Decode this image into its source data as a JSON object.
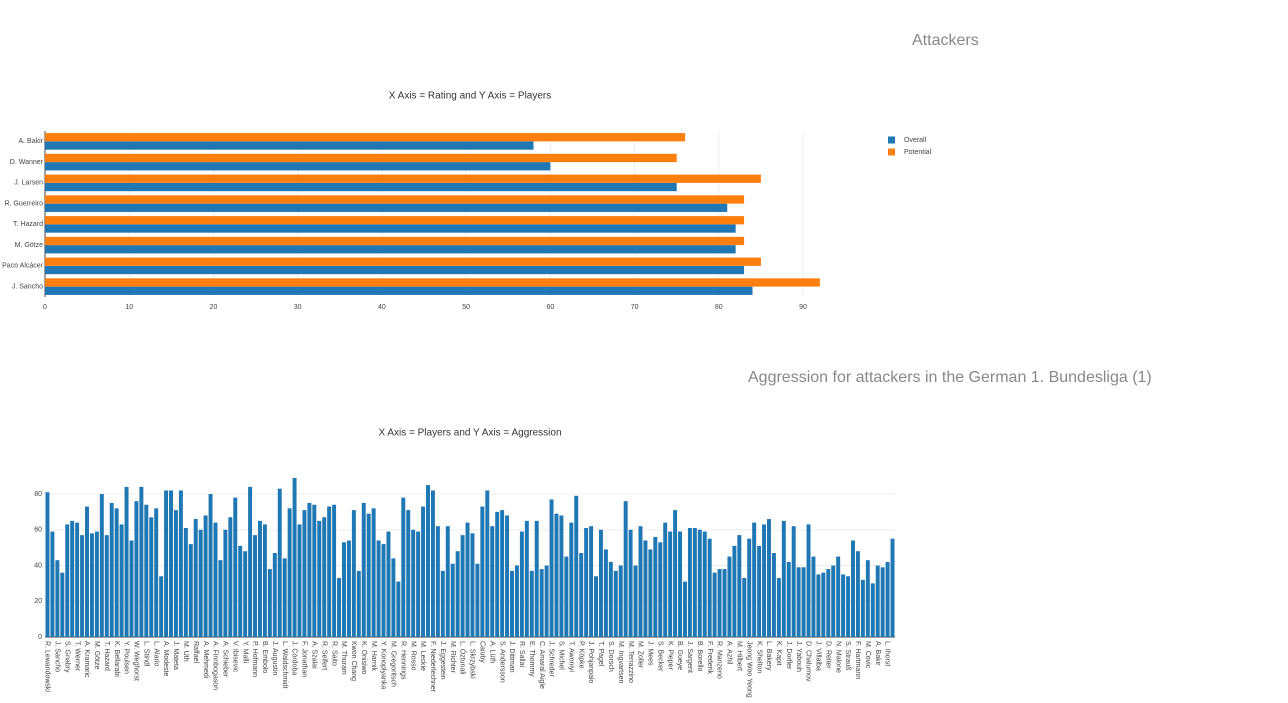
{
  "chart_data": [
    {
      "type": "bar",
      "orientation": "h",
      "heading": "Attackers",
      "title": "X Axis = Rating and Y Axis = Players",
      "categories": [
        "A. Bakir",
        "D. Wanner",
        "J. Larsen",
        "R. Guerreiro",
        "T. Hazard",
        "M. Götze",
        "Paco Alcácer",
        "J. Sancho"
      ],
      "series": [
        {
          "name": "Overall",
          "color": "#1f77b4",
          "values": [
            58,
            60,
            75,
            81,
            82,
            82,
            83,
            84
          ]
        },
        {
          "name": "Potential",
          "color": "#ff7f0e",
          "values": [
            76,
            75,
            85,
            83,
            83,
            83,
            85,
            92
          ]
        }
      ],
      "xlim": [
        0,
        97
      ],
      "xticks": [
        0,
        10,
        20,
        30,
        40,
        50,
        60,
        70,
        80,
        90
      ],
      "grid": true,
      "legend": "top-right"
    },
    {
      "type": "bar",
      "orientation": "v",
      "heading": "Aggression for attackers in the German 1. Bundesliga (1)",
      "title": "X Axis = Players and Y Axis = Aggression",
      "categories": [
        "R. Lewandowski",
        null,
        "J. Sancho",
        null,
        "S. Gnabry",
        null,
        "T. Werner",
        null,
        "A. Kramaric",
        null,
        "M. Götze",
        null,
        "T. Hazard",
        null,
        "K. Bellarabi",
        null,
        "Y. Poulsen",
        null,
        "W. Weghorst",
        null,
        "L. Stindl",
        null,
        "L. Alario",
        null,
        "A. Modeste",
        null,
        "J. Mateta",
        null,
        "M. Uth",
        null,
        "Raffael",
        null,
        "A. Mehmedi",
        null,
        "A. Finnbogason",
        null,
        "A. Schieber",
        null,
        "V. Ibisevic",
        null,
        "Y. Malli",
        null,
        "P. Hofmann",
        null,
        "B. Embolo",
        null,
        "J. Augustin",
        null,
        "L. Waldschmidt",
        null,
        "J. Córdoba",
        null,
        "F. Jonathan",
        null,
        "A. Szalai",
        null,
        "R. Seifert",
        null,
        "R. Saito",
        null,
        "M. Thuram",
        null,
        "Kwon Chang",
        null,
        "K. Onisiwo",
        null,
        "M. Harnik",
        null,
        "Y. Konoplyanka",
        null,
        "M. Gregoritsch",
        null,
        "R. Hennings",
        null,
        "M. Rosso",
        null,
        "M. Leckie",
        null,
        "F. Niederlechner",
        null,
        "J. Eggestein",
        null,
        "M. Richter",
        null,
        "L. Öztunali",
        null,
        "L. Skrzybski",
        null,
        "Caiuby",
        null,
        "A. Lüth",
        null,
        "S. Andersson",
        null,
        "J. Dittman",
        null,
        "R. Sallai",
        null,
        "E. Thommy",
        null,
        "C. Amaral Aigle",
        null,
        "J. Schreder",
        null,
        "S. Michel",
        null,
        "T. Awoniyi",
        null,
        "P. Köpke",
        null,
        "J. Pohjanpalo",
        null,
        "T. Pagel",
        null,
        "S. Dorsch",
        null,
        "M. Ingvartsen",
        null,
        "M. Terrazzino",
        null,
        "M. Zoller",
        null,
        "J. Mees",
        null,
        "S. Becker",
        null,
        "K. Pieper",
        null,
        "B. Gueye",
        null,
        "J. Sargent",
        null,
        "B. Borello",
        null,
        "F. Frederik",
        null,
        "R. Manzeno",
        null,
        "A. Azhil",
        null,
        "M. Hilbert",
        null,
        "Jeong Woo Yeong",
        null,
        "K. Shelton",
        null,
        "L. Bakery",
        null,
        "K. Kapit",
        null,
        "J. Dorfler",
        null,
        "J. Yabouh",
        null,
        "D. Chalumov",
        null,
        "J. Villalba",
        null,
        "D. Reiter",
        null,
        "N. Malone",
        null,
        "S. Strauß",
        null,
        "F. Hartmann",
        null,
        "M. Covic",
        null,
        "A. Bakir",
        null,
        "L. Ihorst",
        null
      ],
      "series": [
        {
          "name": "Aggression",
          "color": "#1f77b4",
          "values": [
            81,
            59,
            43,
            36,
            63,
            65,
            64,
            57,
            73,
            58,
            59,
            80,
            57,
            75,
            72,
            63,
            84,
            54,
            76,
            84,
            74,
            67,
            72,
            34,
            82,
            82,
            71,
            82,
            61,
            52,
            66,
            60,
            68,
            80,
            64,
            43,
            60,
            67,
            78,
            51,
            48,
            84,
            57,
            65,
            63,
            38,
            47,
            83,
            44,
            72,
            89,
            63,
            71,
            75,
            74,
            65,
            67,
            73,
            74,
            33,
            53,
            54,
            71,
            37,
            75,
            69,
            72,
            54,
            52,
            59,
            44,
            31,
            78,
            71,
            60,
            59,
            73,
            85,
            82,
            62,
            37,
            62,
            41,
            48,
            57,
            64,
            58,
            41,
            73,
            82,
            62,
            70,
            71,
            68,
            37,
            40,
            59,
            65,
            37,
            65,
            38,
            40,
            77,
            69,
            68,
            45,
            64,
            79,
            47,
            61,
            62,
            34,
            60,
            49,
            42,
            37,
            40,
            76,
            60,
            40,
            62,
            54,
            49,
            56,
            53,
            64,
            59,
            71,
            59,
            31,
            61,
            61,
            60,
            59,
            55,
            36,
            38,
            38,
            45,
            51,
            57,
            33,
            55,
            64,
            51,
            63,
            66,
            47,
            33,
            65,
            42,
            62,
            39,
            39,
            63,
            45,
            35,
            36,
            38,
            40,
            45,
            35,
            34,
            54,
            48,
            32,
            43,
            30,
            40,
            39,
            42,
            55
          ]
        }
      ],
      "ylim": [
        0,
        94
      ],
      "yticks": [
        0,
        20,
        40,
        60,
        80
      ],
      "grid": true
    }
  ]
}
